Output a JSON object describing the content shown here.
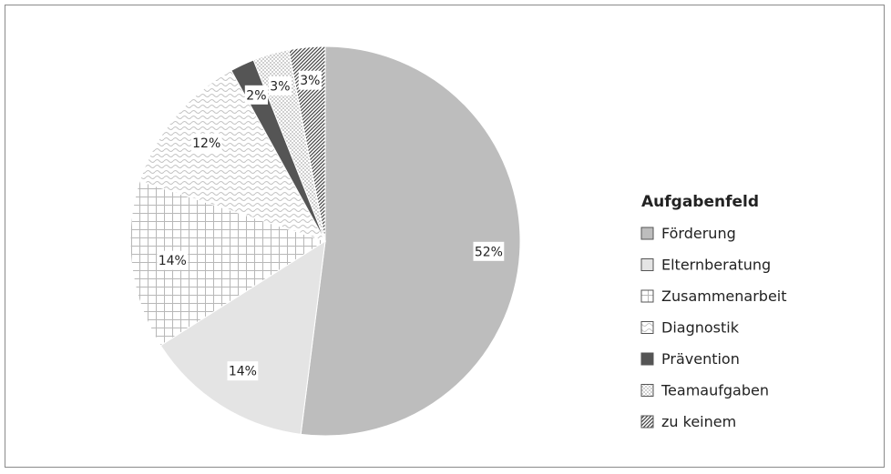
{
  "chart_data": {
    "type": "pie",
    "legend_title": "Aufgabenfeld",
    "legend_position": "right",
    "categories": [
      "Förderung",
      "Elternberatung",
      "Zusammenarbeit",
      "Diagnostik",
      "Prävention",
      "Teamaufgaben",
      "zu keinem"
    ],
    "values": [
      52,
      14,
      14,
      12,
      2,
      3,
      3
    ],
    "value_labels": [
      "52%",
      "14%",
      "14%",
      "12%",
      "2%",
      "3%",
      "3%"
    ],
    "start_angle_deg": 0,
    "direction": "clockwise",
    "fills": [
      {
        "base": "#bdbdbd",
        "pattern": "solid"
      },
      {
        "base": "#e4e4e4",
        "pattern": "solid"
      },
      {
        "base": "#ffffff",
        "pattern": "grid"
      },
      {
        "base": "#ffffff",
        "pattern": "wave"
      },
      {
        "base": "#555555",
        "pattern": "solid"
      },
      {
        "base": "#ffffff",
        "pattern": "checker"
      },
      {
        "base": "#ffffff",
        "pattern": "diagonal"
      }
    ]
  }
}
